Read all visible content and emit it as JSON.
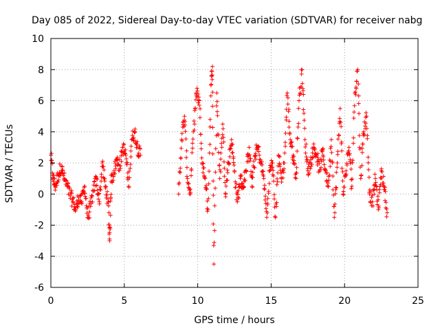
{
  "chart_data": {
    "type": "scatter",
    "title": "Day 085 of 2022, Sidereal Day-to-day VTEC variation (SDTVAR) for receiver nabg",
    "xlabel": "GPS time / hours",
    "ylabel": "SDTVAR / TECUs",
    "xlim": [
      0,
      25
    ],
    "ylim": [
      -6,
      10
    ],
    "xticks": [
      0,
      5,
      10,
      15,
      20,
      25
    ],
    "yticks": [
      -6,
      -4,
      -2,
      0,
      2,
      4,
      6,
      8,
      10
    ],
    "grid": true,
    "marker": "+",
    "color": "#ff0000",
    "series": [
      {
        "name": "SDTVAR",
        "segments": [
          {
            "t": [
              0.0,
              0.15,
              0.3,
              0.5,
              0.7,
              0.9,
              1.1,
              1.3,
              1.5,
              1.7,
              1.9,
              2.1,
              2.3,
              2.5,
              2.7,
              2.9,
              3.1,
              3.3,
              3.5,
              3.7,
              3.9,
              4.0,
              4.1,
              4.3,
              4.5,
              4.7,
              4.9,
              5.1,
              5.3,
              5.5,
              5.7,
              5.9,
              6.1
            ],
            "v": [
              2.5,
              1.0,
              0.5,
              1.2,
              1.8,
              1.0,
              0.5,
              0.0,
              -0.5,
              -1.0,
              -0.2,
              -0.5,
              0.5,
              -1.5,
              -0.8,
              0.2,
              1.0,
              -0.5,
              2.0,
              0.5,
              -0.5,
              -3.0,
              0.8,
              1.5,
              2.2,
              1.8,
              3.0,
              2.5,
              0.5,
              3.5,
              4.0,
              3.0,
              2.5
            ]
          },
          {
            "t": [
              8.7,
              8.9,
              9.1,
              9.3,
              9.5,
              9.7,
              9.9,
              10.1,
              10.3,
              10.5,
              10.7,
              10.9,
              11.0,
              11.1,
              11.3,
              11.5,
              11.7,
              11.9,
              12.1,
              12.3,
              12.5,
              12.7,
              12.9,
              13.1,
              13.3,
              13.5,
              13.7,
              13.9,
              14.1,
              14.3,
              14.5,
              14.7,
              14.9,
              15.1,
              15.3,
              15.5,
              15.7,
              15.9,
              16.1,
              16.3,
              16.5,
              16.7,
              16.9,
              17.1,
              17.3,
              17.5,
              17.7,
              17.9,
              18.1,
              18.3,
              18.5,
              18.7,
              18.9,
              19.1,
              19.3,
              19.5,
              19.7,
              19.9,
              20.1,
              20.3,
              20.5,
              20.7,
              20.9,
              21.1,
              21.3,
              21.5,
              21.7,
              21.9,
              22.1,
              22.3,
              22.5,
              22.7,
              22.9
            ],
            "v": [
              0.0,
              3.5,
              5.0,
              1.0,
              0.0,
              4.0,
              6.5,
              6.0,
              2.0,
              1.0,
              -1.0,
              7.0,
              8.2,
              -4.5,
              6.5,
              1.0,
              4.5,
              0.0,
              2.0,
              3.5,
              1.5,
              -0.5,
              1.0,
              0.5,
              1.5,
              3.0,
              0.5,
              2.5,
              3.0,
              2.0,
              1.0,
              -1.5,
              1.5,
              2.0,
              -1.5,
              2.5,
              1.0,
              2.0,
              6.5,
              3.5,
              2.5,
              1.0,
              6.0,
              8.0,
              3.5,
              1.5,
              2.0,
              3.0,
              2.5,
              1.5,
              2.8,
              1.5,
              0.5,
              3.5,
              -1.5,
              2.0,
              5.5,
              0.0,
              1.5,
              3.0,
              0.5,
              6.5,
              8.0,
              1.0,
              4.0,
              5.0,
              0.0,
              -0.5,
              1.0,
              -1.0,
              1.5,
              0.5,
              -1.2
            ]
          }
        ]
      }
    ]
  }
}
